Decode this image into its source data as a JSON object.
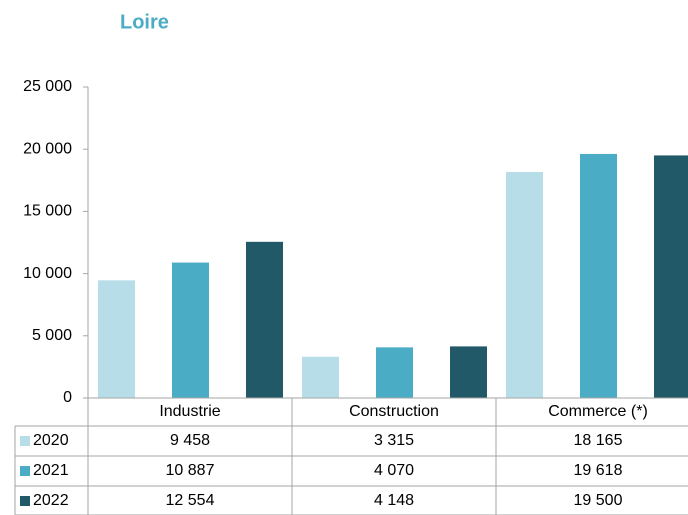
{
  "chart_data": {
    "type": "bar",
    "title": "Loire",
    "categories": [
      "Industrie",
      "Construction",
      "Commerce (*)"
    ],
    "series": [
      {
        "name": "2020",
        "color": "#b7dde8",
        "values": [
          9458,
          3315,
          18165
        ],
        "value_labels": [
          "9 458",
          "3 315",
          "18 165"
        ]
      },
      {
        "name": "2021",
        "color": "#4bacc6",
        "values": [
          10887,
          4070,
          19618
        ],
        "value_labels": [
          "10 887",
          "4 070",
          "19 618"
        ]
      },
      {
        "name": "2022",
        "color": "#215968",
        "values": [
          12554,
          4148,
          19500
        ],
        "value_labels": [
          "12 554",
          "4 148",
          "19 500"
        ]
      }
    ],
    "ylim": [
      0,
      25000
    ],
    "yticks": [
      0,
      {
        "value": 5000,
        "label": "5 000"
      },
      {
        "value": 10000,
        "label": "10 000"
      },
      {
        "value": 15000,
        "label": "15 000"
      },
      {
        "value": 20000,
        "label": "20 000"
      },
      {
        "value": 25000,
        "label": "25 000"
      }
    ],
    "grid": false
  }
}
